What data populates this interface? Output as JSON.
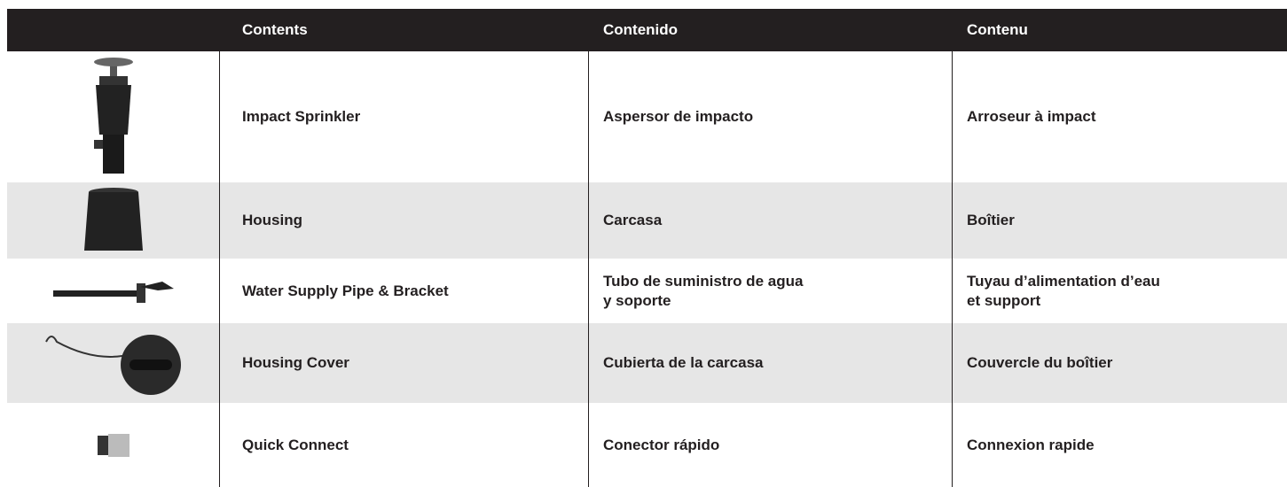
{
  "table": {
    "header": [
      "Contents",
      "Contenido",
      "Contenu"
    ],
    "rows": [
      [
        "Impact Sprinkler",
        "Aspersor de impacto",
        "Arroseur à impact"
      ],
      [
        "Housing",
        "Carcasa",
        "Boîtier"
      ],
      [
        "Water Supply Pipe & Bracket",
        "Tubo de suministro de agua\ny soporte",
        "Tuyau d’alimentation d’eau\net support"
      ],
      [
        "Housing Cover",
        "Cubierta de la carcasa",
        "Couvercle du boîtier"
      ],
      [
        "Quick Connect",
        "Conector rápido",
        "Connexion rapide"
      ]
    ]
  }
}
